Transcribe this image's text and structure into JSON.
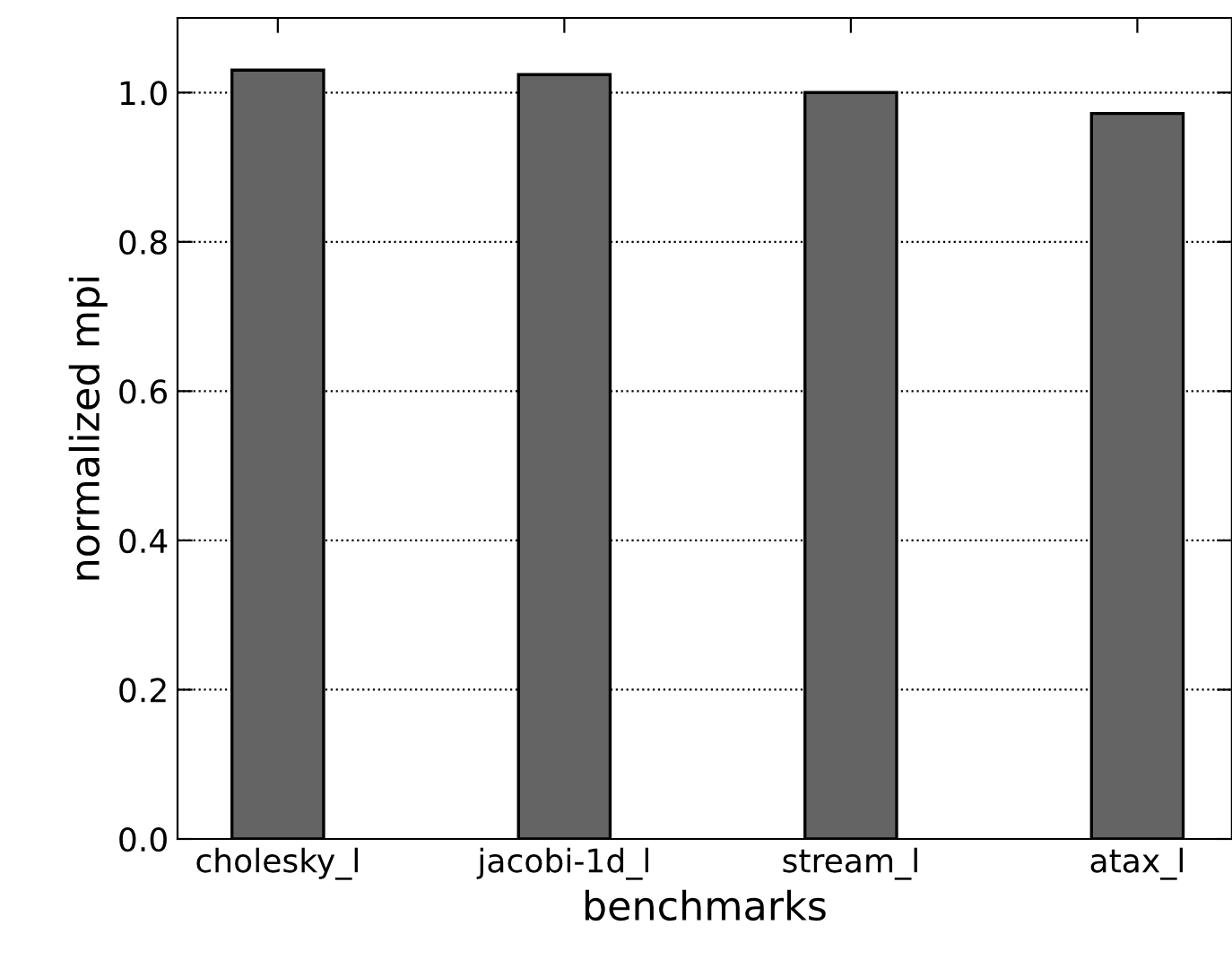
{
  "chart_data": {
    "type": "bar",
    "xlabel": "benchmarks",
    "ylabel": "normalized mpi",
    "categories": [
      "cholesky_l",
      "jacobi-1d_l",
      "stream_l",
      "atax_l"
    ],
    "values": [
      1.03,
      1.024,
      1.0,
      0.972
    ],
    "color": "#646464",
    "ylim": [
      0,
      1.1
    ],
    "yticks": [
      {
        "value": 0,
        "label": "0.0"
      },
      {
        "value": 0.2,
        "label": "0.2"
      },
      {
        "value": 0.4,
        "label": "0.4"
      },
      {
        "value": 0.6,
        "label": "0.6"
      },
      {
        "value": 0.8,
        "label": "0.8"
      },
      {
        "value": 1.0,
        "label": "1.0"
      }
    ],
    "grid": "y",
    "legend": false
  }
}
